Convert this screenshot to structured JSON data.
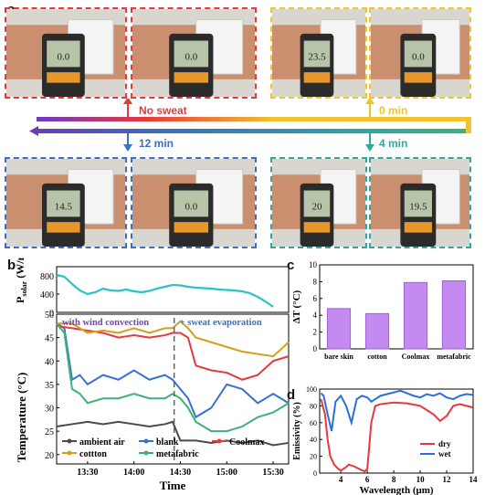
{
  "panel_a": {
    "letter": "a",
    "photos": [
      {
        "group": "no-sweat",
        "screen": "0.0",
        "border": "#e8383d"
      },
      {
        "group": "no-sweat",
        "screen": "0.0",
        "border": "#e8383d"
      },
      {
        "group": "0-min",
        "screen": "23.5",
        "border": "#f0c330"
      },
      {
        "group": "0-min",
        "screen": "0.0",
        "border": "#f0c330"
      },
      {
        "group": "12-min",
        "screen": "14.5",
        "border": "#3a6fc4"
      },
      {
        "group": "12-min",
        "screen": "0.0",
        "border": "#3a6fc4"
      },
      {
        "group": "4-min",
        "screen": "20",
        "border": "#2fa7a0"
      },
      {
        "group": "4-min",
        "screen": "19.5",
        "border": "#2fa7a0"
      }
    ],
    "labels": {
      "no_sweat": "No sweat",
      "zero_min": "0 min",
      "twelve_min": "12 min",
      "four_min": "4 min"
    },
    "colors": {
      "red": "#e8383d",
      "yellow": "#f0c330",
      "blue": "#3a6fc4",
      "teal": "#2fa7a0",
      "purple": "#6a3cbf"
    }
  },
  "chart_data": [
    {
      "panel": "b-top",
      "type": "line",
      "letter": "b",
      "ylabel_main": "P",
      "ylabel_sub": "solar",
      "ylabel_unit": " (W/m",
      "ylabel_sup": "2",
      "ylabel_close": ")",
      "ylim": [
        0,
        1000
      ],
      "yticks": [
        "800",
        "400",
        "0"
      ],
      "ytick_values": [
        800,
        400,
        0
      ],
      "color": "#2cc3c3",
      "x": [
        0,
        5,
        10,
        15,
        20,
        25,
        30,
        35,
        40,
        45,
        50,
        55,
        60,
        65,
        70,
        75,
        80,
        85,
        90,
        95,
        100,
        105,
        110,
        115,
        120,
        125,
        130,
        135,
        140
      ],
      "values": [
        820,
        780,
        620,
        480,
        400,
        440,
        520,
        480,
        470,
        500,
        460,
        440,
        470,
        520,
        560,
        600,
        590,
        560,
        540,
        530,
        520,
        500,
        490,
        480,
        460,
        420,
        340,
        240,
        120
      ]
    },
    {
      "panel": "b-bottom",
      "type": "line",
      "ylabel": "Temperature (°C)",
      "xlabel": "Time",
      "ylim": [
        18,
        50
      ],
      "yticks": [
        "50",
        "45",
        "40",
        "35",
        "30",
        "25",
        "20"
      ],
      "ytick_values": [
        50,
        45,
        40,
        35,
        30,
        25,
        20
      ],
      "xticks": [
        "13:30",
        "14:00",
        "14:30",
        "15:00",
        "15:30"
      ],
      "xtick_values": [
        20,
        50,
        80,
        110,
        140
      ],
      "xlim": [
        0,
        150
      ],
      "divider_x": 76,
      "annotation_left": "with wind convection",
      "annotation_right": "+ sweat evaporation",
      "annotation_left_color": "#7b3fb8",
      "annotation_right_color": "#3a6fc4",
      "series": [
        {
          "name": "ambient air",
          "color": "#4a4a4a",
          "x": [
            0,
            10,
            20,
            30,
            40,
            50,
            60,
            70,
            75,
            80,
            90,
            100,
            110,
            120,
            130,
            140,
            150
          ],
          "values": [
            26,
            26.5,
            27,
            26.5,
            27,
            26.5,
            26,
            26.5,
            27,
            23,
            23,
            22.5,
            23,
            22.5,
            23,
            22,
            22.5
          ]
        },
        {
          "name": "blank",
          "color": "#3b6fd6",
          "x": [
            0,
            5,
            10,
            15,
            20,
            30,
            40,
            50,
            60,
            70,
            75,
            80,
            85,
            90,
            100,
            110,
            120,
            130,
            140,
            150
          ],
          "values": [
            48,
            47,
            36,
            37,
            35,
            37,
            36,
            38,
            36,
            37,
            36,
            34,
            32,
            28,
            30,
            35,
            34,
            31,
            33,
            31
          ]
        },
        {
          "name": "Coolmax",
          "color": "#e8383d",
          "x": [
            0,
            10,
            20,
            30,
            40,
            50,
            60,
            70,
            75,
            80,
            85,
            90,
            100,
            110,
            120,
            130,
            140,
            150
          ],
          "values": [
            47.5,
            47,
            46.5,
            46,
            45,
            45.5,
            45,
            45.5,
            46,
            46,
            45,
            39,
            38,
            37.5,
            36,
            37,
            40,
            41
          ]
        },
        {
          "name": "cottton",
          "color": "#d4a017",
          "x": [
            0,
            10,
            20,
            30,
            40,
            50,
            60,
            70,
            75,
            80,
            85,
            90,
            100,
            110,
            120,
            130,
            140,
            150
          ],
          "values": [
            48,
            48,
            46,
            46.5,
            46,
            47,
            46,
            47,
            47,
            48.5,
            47,
            45,
            44,
            43,
            42,
            41.5,
            41,
            44
          ]
        },
        {
          "name": "metafabric",
          "color": "#3cb371",
          "x": [
            0,
            5,
            10,
            15,
            20,
            30,
            40,
            50,
            60,
            70,
            75,
            80,
            85,
            90,
            100,
            110,
            120,
            130,
            140,
            150
          ],
          "values": [
            48,
            46,
            34,
            33,
            31,
            32,
            32,
            33,
            32,
            32,
            33,
            32,
            30,
            27,
            25,
            25,
            26,
            28,
            29,
            31
          ]
        }
      ],
      "legend": [
        "ambient air",
        "blank",
        "Coolmax",
        "cottton",
        "metafabric"
      ]
    },
    {
      "panel": "c",
      "type": "bar",
      "letter": "c",
      "categories": [
        "bare skin",
        "cotton",
        "Coolmax",
        "metafabric"
      ],
      "values": [
        4.8,
        4.2,
        7.9,
        8.1
      ],
      "ylabel": "ΔT (°C)",
      "ylim": [
        0,
        10
      ],
      "yticks": [
        "0",
        "2",
        "4",
        "6",
        "8",
        "10"
      ],
      "ytick_values": [
        0,
        2,
        4,
        6,
        8,
        10
      ],
      "color": "#c48af0"
    },
    {
      "panel": "d",
      "type": "line",
      "letter": "d",
      "xlabel": "Wavelength (μm)",
      "ylabel": "Emissivity (%)",
      "xlim": [
        2.4,
        14
      ],
      "ylim": [
        0,
        100
      ],
      "xticks": [
        "4",
        "6",
        "8",
        "10",
        "12",
        "14"
      ],
      "xtick_values": [
        4,
        6,
        8,
        10,
        12,
        14
      ],
      "yticks": [
        "0",
        "20",
        "40",
        "60",
        "80",
        "100"
      ],
      "ytick_values": [
        0,
        20,
        40,
        60,
        80,
        100
      ],
      "series": [
        {
          "name": "dry",
          "color": "#e8383d",
          "x": [
            2.5,
            2.8,
            3.0,
            3.2,
            3.5,
            3.8,
            4.0,
            4.3,
            4.6,
            5.0,
            5.5,
            5.8,
            6.0,
            6.3,
            6.6,
            7,
            8,
            9,
            10,
            10.5,
            11,
            11.5,
            12,
            12.5,
            13,
            13.5,
            14
          ],
          "values": [
            88,
            70,
            40,
            20,
            10,
            5,
            3,
            6,
            10,
            8,
            4,
            2,
            5,
            60,
            80,
            82,
            84,
            83,
            80,
            75,
            70,
            62,
            68,
            80,
            82,
            80,
            78
          ]
        },
        {
          "name": "wet",
          "color": "#2b6ee0",
          "x": [
            2.5,
            2.7,
            3.0,
            3.3,
            3.6,
            4.0,
            4.4,
            4.8,
            5.2,
            5.6,
            6.0,
            6.3,
            6.6,
            7,
            7.5,
            8,
            8.5,
            9,
            9.5,
            10,
            10.5,
            11,
            11.5,
            12,
            12.5,
            13,
            13.5,
            14
          ],
          "values": [
            95,
            92,
            70,
            50,
            85,
            92,
            80,
            60,
            88,
            92,
            90,
            85,
            88,
            92,
            94,
            96,
            98,
            95,
            92,
            90,
            94,
            92,
            95,
            90,
            88,
            92,
            94,
            93
          ]
        }
      ],
      "legend": [
        "dry",
        "wet"
      ]
    }
  ]
}
